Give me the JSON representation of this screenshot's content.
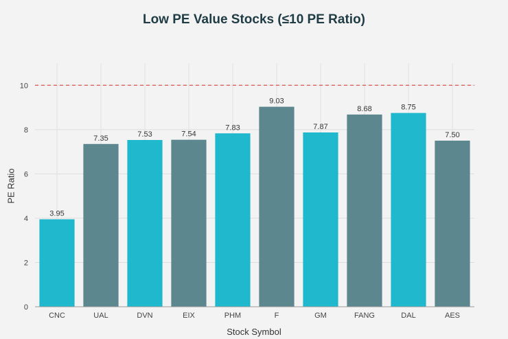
{
  "chart_data": {
    "type": "bar",
    "title": "Low PE Value Stocks (≤10 PE Ratio)",
    "xlabel": "Stock Symbol",
    "ylabel": "PE Ratio",
    "categories": [
      "CNC",
      "UAL",
      "DVN",
      "EIX",
      "PHM",
      "F",
      "GM",
      "FANG",
      "DAL",
      "AES"
    ],
    "values": [
      3.95,
      7.35,
      7.53,
      7.54,
      7.83,
      9.03,
      7.87,
      8.68,
      8.75,
      7.5
    ],
    "data_labels": [
      "3.95",
      "7.35",
      "7.53",
      "7.54",
      "7.83",
      "9.03",
      "7.87",
      "8.68",
      "8.75",
      "7.50"
    ],
    "ylim": [
      0,
      11
    ],
    "yticks": [
      0,
      2,
      4,
      6,
      8,
      10
    ],
    "reference_line": {
      "value": 10,
      "style": "dashed",
      "color": "#d9534f"
    },
    "grid": true,
    "bar_colors": [
      "#1fb8cd",
      "#5d878f",
      "#1fb8cd",
      "#5d878f",
      "#1fb8cd",
      "#5d878f",
      "#1fb8cd",
      "#5d878f",
      "#1fb8cd",
      "#5d878f"
    ]
  }
}
